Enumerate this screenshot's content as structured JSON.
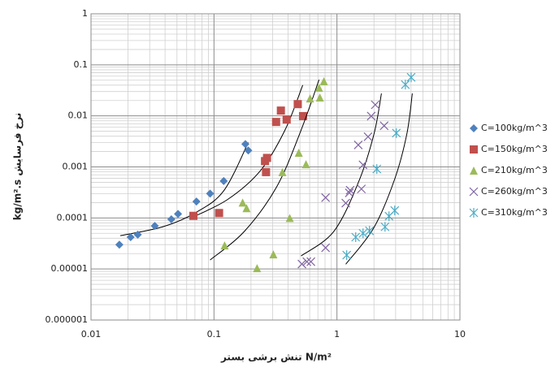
{
  "chart_data": {
    "type": "scatter",
    "x_label": "تنش برشی بستر N/m²",
    "y_label": "kg/m².s نرخ فرسایش",
    "log_x": true,
    "log_y": true,
    "grid": true,
    "minor_grid": true,
    "legend": "right",
    "xlim": [
      0.01,
      10
    ],
    "xticks": [
      0.01,
      0.1,
      1,
      10
    ],
    "ylim": [
      1e-06,
      1
    ],
    "yticks": [
      1,
      0.1,
      0.01,
      0.001,
      0.0001,
      1e-05,
      1e-06
    ],
    "trend_color": "#000000",
    "series": [
      {
        "name": "C=100kg/m^3",
        "color": "#4f81bd",
        "marker": "diamond",
        "x": [
          0.017,
          0.021,
          0.024,
          0.033,
          0.045,
          0.051,
          0.072,
          0.093,
          0.12,
          0.18,
          0.19
        ],
        "values": [
          3e-05,
          4.2e-05,
          4.7e-05,
          7e-05,
          9.4e-05,
          0.00012,
          0.00021,
          0.0003,
          0.00053,
          0.0028,
          0.0021
        ],
        "trend": {
          "x": [
            0.0173,
            0.0383,
            0.0704,
            0.12,
            0.19
          ],
          "values": [
            4.5e-05,
            6.7e-05,
            0.000126,
            0.00034,
            0.003
          ]
        }
      },
      {
        "name": "C=150kg/m^3",
        "color": "#c0504d",
        "marker": "square",
        "x": [
          0.068,
          0.11,
          0.26,
          0.27,
          0.265,
          0.32,
          0.35,
          0.39,
          0.48,
          0.53
        ],
        "values": [
          0.00011,
          0.000125,
          0.0013,
          0.0015,
          0.00079,
          0.0076,
          0.0127,
          0.0085,
          0.017,
          0.0099
        ],
        "trend": {
          "x": [
            0.065,
            0.129,
            0.238,
            0.377,
            0.527
          ],
          "values": [
            0.0001,
            0.00023,
            0.00084,
            0.0052,
            0.04
          ]
        }
      },
      {
        "name": "C=210kg/m^3",
        "color": "#9bbb59",
        "marker": "triangle",
        "x": [
          0.122,
          0.171,
          0.184,
          0.224,
          0.304,
          0.36,
          0.413,
          0.489,
          0.56,
          0.604,
          0.726,
          0.715,
          0.783
        ],
        "values": [
          2.9e-05,
          0.0002,
          0.000156,
          1.04e-05,
          1.94e-05,
          0.00079,
          0.0001,
          0.0019,
          0.00113,
          0.022,
          0.023,
          0.0356,
          0.0477
        ],
        "trend": {
          "x": [
            0.093,
            0.176,
            0.324,
            0.51,
            0.715
          ],
          "values": [
            1.5e-05,
            5.4e-05,
            0.00041,
            0.0052,
            0.051
          ]
        }
      },
      {
        "name": "C=260kg/m^3",
        "color": "#8064a2",
        "marker": "x",
        "x": [
          0.519,
          0.569,
          0.614,
          0.808,
          0.808,
          1.18,
          1.26,
          1.28,
          1.49,
          1.58,
          1.63,
          1.79,
          1.9,
          2.05,
          2.42
        ],
        "values": [
          1.25e-05,
          1.39e-05,
          1.39e-05,
          0.00025,
          2.6e-05,
          0.000195,
          0.00031,
          0.00035,
          0.0027,
          0.00037,
          0.0011,
          0.0039,
          0.0099,
          0.0165,
          0.0064
        ],
        "trend": {
          "x": [
            0.51,
            0.94,
            1.49,
            2.0,
            2.3
          ],
          "values": [
            1.8e-05,
            5.4e-05,
            0.00049,
            0.0044,
            0.0275
          ]
        }
      },
      {
        "name": "C=310kg/m^3",
        "color": "#4bacc6",
        "marker": "asterisk",
        "x": [
          1.2,
          1.42,
          1.63,
          1.84,
          2.11,
          2.46,
          2.65,
          2.95,
          3.04,
          3.6,
          4.01
        ],
        "values": [
          1.87e-05,
          4.2e-05,
          5e-05,
          5.6e-05,
          0.00091,
          6.7e-05,
          0.000108,
          0.00014,
          0.0046,
          0.041,
          0.057
        ],
        "trend": {
          "x": [
            1.18,
            2.0,
            2.95,
            3.7,
            4.1
          ],
          "values": [
            1.24e-05,
            6.5e-05,
            0.00058,
            0.0044,
            0.0275
          ]
        }
      }
    ]
  }
}
